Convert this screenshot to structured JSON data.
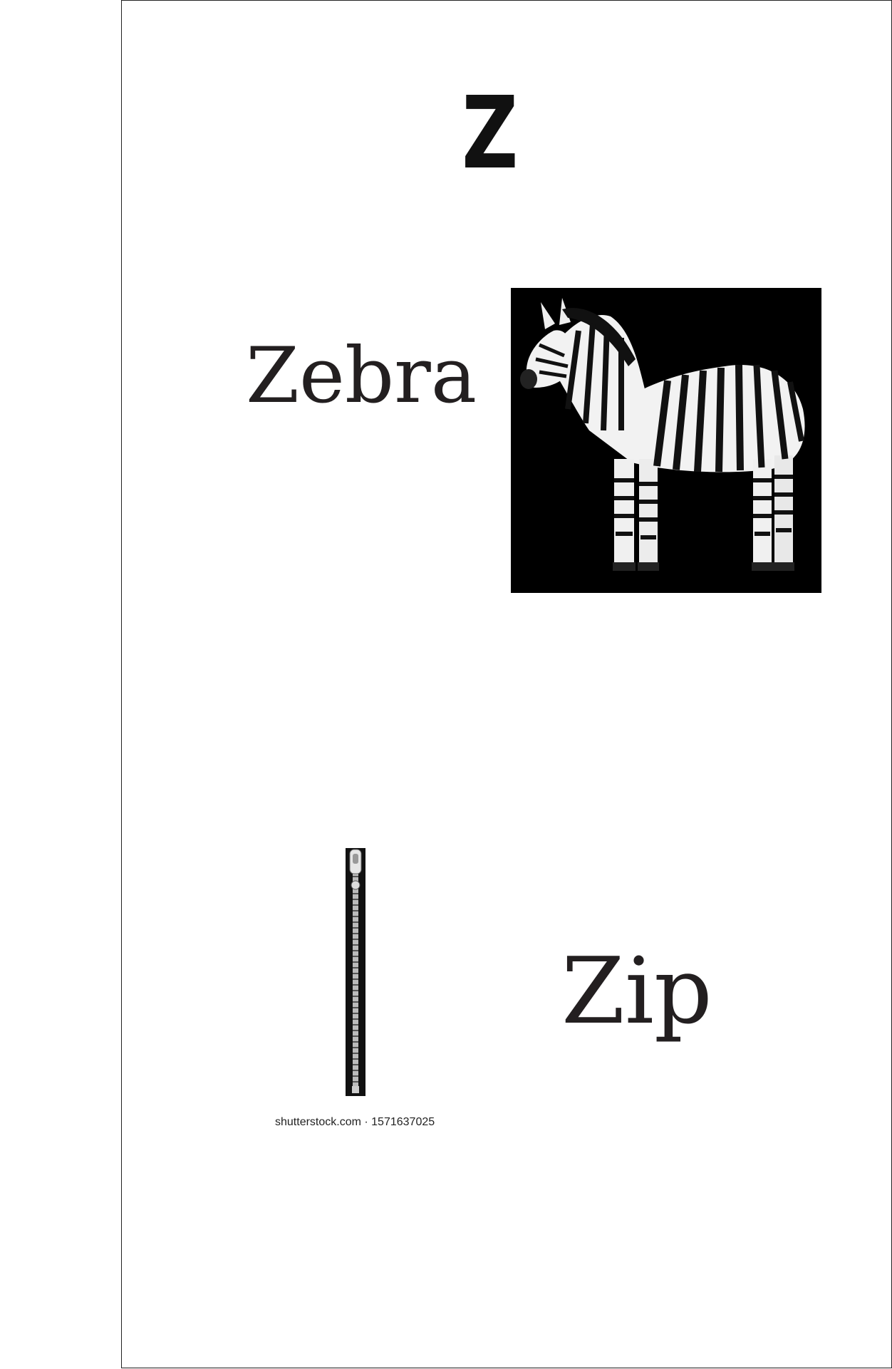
{
  "page": {
    "letter": "Z",
    "entries": [
      {
        "word": "Zebra",
        "illustration": "zebra-photo"
      },
      {
        "word": "Zip",
        "illustration": "zipper-photo"
      }
    ],
    "watermark": "shutterstock.com · 1571637025"
  },
  "colors": {
    "text": "#231f20",
    "photo_background": "#000000",
    "page_border": "#222222"
  }
}
